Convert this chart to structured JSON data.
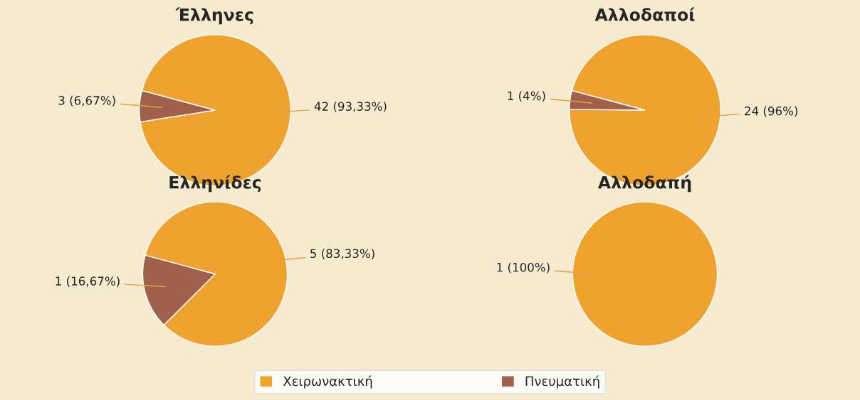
{
  "chart_data": [
    {
      "type": "pie",
      "title": "Έλληνες",
      "categories": [
        "Χειρωνακτική",
        "Πνευματική"
      ],
      "values": [
        42,
        3
      ],
      "colors": [
        "#f0a22e",
        "#a0604c"
      ],
      "value_labels": [
        "42 (93,33%)",
        "3 (6,67%)"
      ],
      "legend": "bottom"
    },
    {
      "type": "pie",
      "title": "Αλλοδαποί",
      "values": [
        24,
        1
      ],
      "colors": [
        "#f0a22e",
        "#a0604c"
      ],
      "value_labels": [
        "24 (96%)",
        "1 (4%)"
      ]
    },
    {
      "type": "pie",
      "title": "Ελληνίδες",
      "values": [
        5,
        1
      ],
      "colors": [
        "#f0a22e",
        "#a0604c"
      ],
      "value_labels": [
        "5 (83,33%)",
        "1 (16,67%)"
      ]
    },
    {
      "type": "pie",
      "title": "Αλλοδαπή",
      "values": [
        1
      ],
      "colors": [
        "#f0a22e"
      ],
      "value_labels": [
        "1 (100%)"
      ]
    }
  ]
}
